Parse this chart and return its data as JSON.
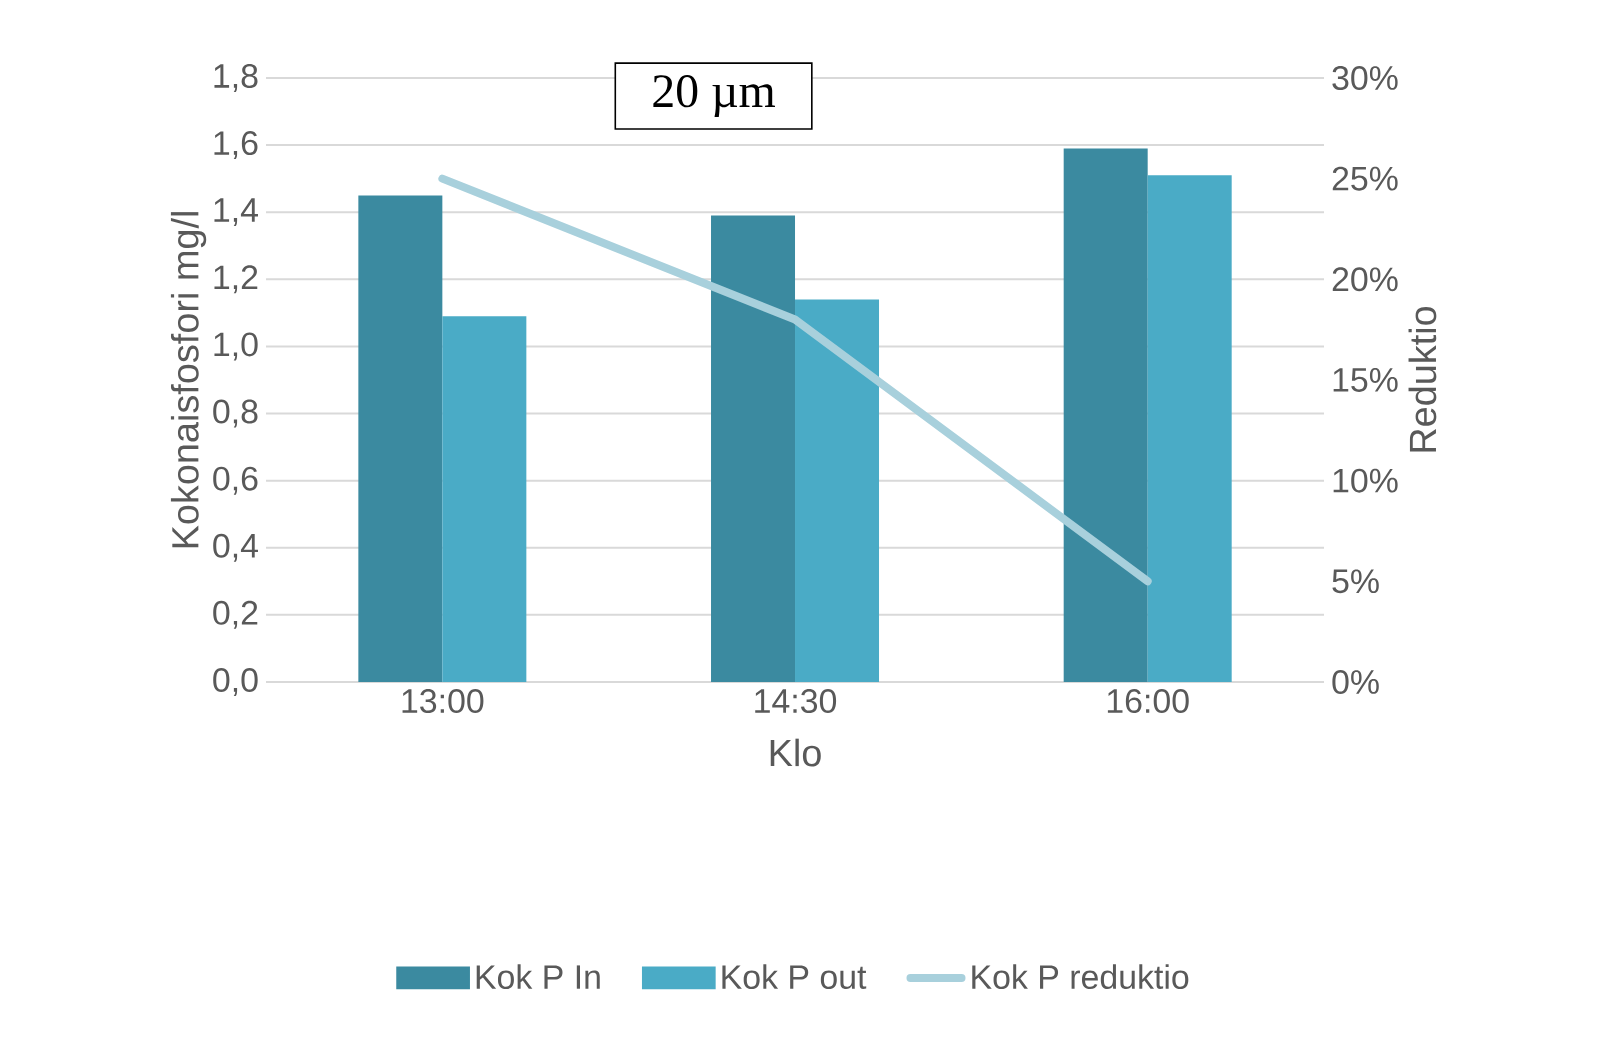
{
  "chart_data": {
    "type": "bar",
    "categories": [
      "13:00",
      "14:30",
      "16:00"
    ],
    "series": [
      {
        "name": "Kok P In",
        "color": "#3b8aa0",
        "values": [
          1.45,
          1.39,
          1.59
        ]
      },
      {
        "name": "Kok P out",
        "color": "#4aabc6",
        "values": [
          1.09,
          1.14,
          1.51
        ]
      },
      {
        "name": "Kok P reduktio",
        "type": "line",
        "axis": "y2",
        "color": "#a8d0dc",
        "values": [
          25,
          18,
          5
        ]
      }
    ],
    "xlabel": "Klo",
    "ylabel": "Kokonaisfosfori mg/l",
    "y2label": "Reduktio",
    "annotations": [
      "20 µm"
    ],
    "ylim": [
      0,
      1.8
    ],
    "yticks": [
      {
        "value": 0,
        "label": "0,0"
      },
      {
        "value": 0.2,
        "label": "0,2"
      },
      {
        "value": 0.4,
        "label": "0,4"
      },
      {
        "value": 0.6,
        "label": "0,6"
      },
      {
        "value": 0.8,
        "label": "0,8"
      },
      {
        "value": 1.0,
        "label": "1,0"
      },
      {
        "value": 1.2,
        "label": "1,2"
      },
      {
        "value": 1.4,
        "label": "1,4"
      },
      {
        "value": 1.6,
        "label": "1,6"
      },
      {
        "value": 1.8,
        "label": "1,8"
      }
    ],
    "y2lim": [
      0,
      30
    ],
    "y2ticks": [
      {
        "value": 0,
        "label": "0%"
      },
      {
        "value": 5,
        "label": "5%"
      },
      {
        "value": 10,
        "label": "10%"
      },
      {
        "value": 15,
        "label": "15%"
      },
      {
        "value": 20,
        "label": "20%"
      },
      {
        "value": 25,
        "label": "25%"
      },
      {
        "value": 30,
        "label": "30%"
      }
    ],
    "grid": "y",
    "legend": "bottom"
  }
}
